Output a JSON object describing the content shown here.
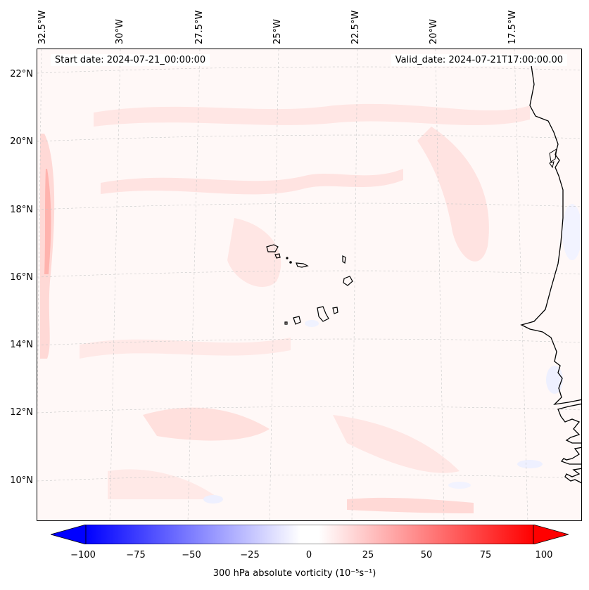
{
  "map": {
    "start_date": "Start date: 2024-07-21_00:00:00",
    "valid_date": "Valid_date: 2024-07-21T17:00:00.00",
    "lon_labels": [
      "32.5°W",
      "30°W",
      "27.5°W",
      "25°W",
      "22.5°W",
      "20°W",
      "17.5°W"
    ],
    "lat_labels": [
      "22°N",
      "20°N",
      "18°N",
      "16°N",
      "14°N",
      "12°N",
      "10°N"
    ],
    "field_colors": {
      "background": "#fff8f7",
      "light_pink": "#ffe3e1",
      "pink": "#ffd0cd",
      "strong_pink": "#ffa8a4",
      "light_blue": "#eef0ff",
      "coastline": "#000000"
    }
  },
  "colorbar": {
    "label": "300 hPa absolute vorticity (10⁻⁵s⁻¹)",
    "ticks": [
      "−100",
      "−75",
      "−50",
      "−25",
      "0",
      "25",
      "50",
      "75",
      "100"
    ],
    "min": -100,
    "max": 100,
    "colors": {
      "low": "#0000ff",
      "mid": "#ffffff",
      "high": "#ff0000"
    }
  }
}
